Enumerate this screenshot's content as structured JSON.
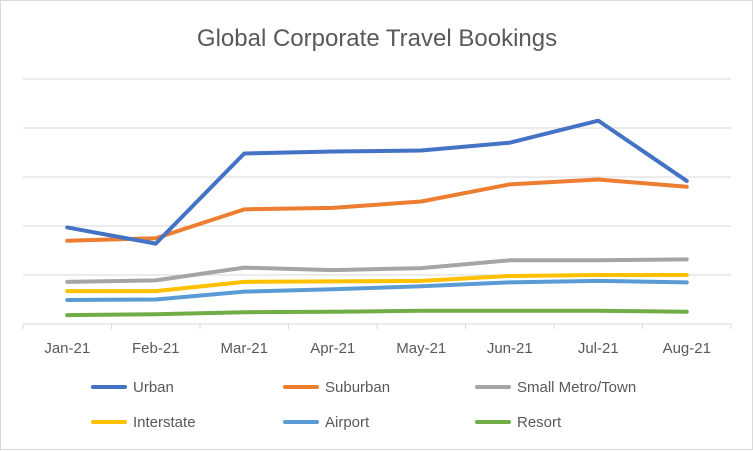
{
  "chart_data": {
    "type": "line",
    "title": "Global Corporate Travel Bookings",
    "xlabel": "",
    "ylabel": "",
    "categories": [
      "Jan-21",
      "Feb-21",
      "Mar-21",
      "Apr-21",
      "May-21",
      "Jun-21",
      "Jul-21",
      "Aug-21"
    ],
    "ylim": [
      0,
      5
    ],
    "grid": true,
    "y_tick_labels_shown": false,
    "legend_position": "bottom",
    "series": [
      {
        "name": "Urban",
        "color": "#4472C4",
        "values": [
          1.97,
          1.64,
          3.48,
          3.52,
          3.54,
          3.7,
          4.15,
          2.92
        ]
      },
      {
        "name": "Suburban",
        "color": "#ED7D31",
        "values": [
          1.7,
          1.75,
          2.34,
          2.37,
          2.5,
          2.85,
          2.95,
          2.8
        ]
      },
      {
        "name": "Small Metro/Town",
        "color": "#A5A5A5",
        "values": [
          0.86,
          0.89,
          1.15,
          1.1,
          1.14,
          1.3,
          1.3,
          1.32
        ]
      },
      {
        "name": "Interstate",
        "color": "#FFC000",
        "values": [
          0.67,
          0.67,
          0.86,
          0.87,
          0.88,
          0.98,
          1.0,
          1.0
        ]
      },
      {
        "name": "Airport",
        "color": "#5B9BD5",
        "values": [
          0.49,
          0.5,
          0.66,
          0.71,
          0.77,
          0.85,
          0.88,
          0.85
        ]
      },
      {
        "name": "Resort",
        "color": "#70AD47",
        "values": [
          0.18,
          0.2,
          0.24,
          0.25,
          0.27,
          0.27,
          0.27,
          0.25
        ]
      }
    ]
  }
}
